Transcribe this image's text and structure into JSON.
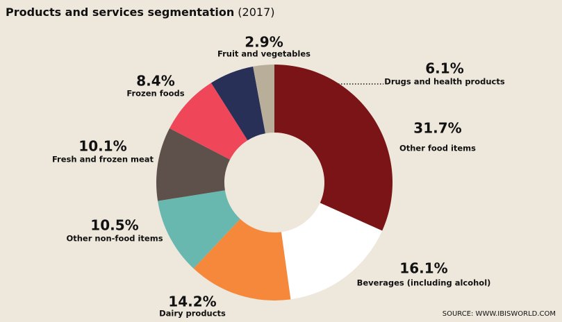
{
  "chart_data": {
    "type": "donut",
    "title": "Products and services segmentation",
    "subtitle": "(2017)",
    "categories": [
      "Other food items",
      "Beverages (including alcohol)",
      "Dairy products",
      "Other non-food items",
      "Fresh and frozen meat",
      "Frozen foods",
      "Drugs and health products",
      "Fruit and vegetables"
    ],
    "values": [
      31.7,
      16.1,
      14.2,
      10.5,
      10.1,
      8.4,
      6.1,
      2.9
    ],
    "value_labels": [
      "31.7%",
      "16.1%",
      "14.2%",
      "10.5%",
      "10.1%",
      "8.4%",
      "6.1%",
      "2.9%"
    ],
    "colors": [
      "#7a1416",
      "#ffffff",
      "#f5883a",
      "#68b8b0",
      "#5e514c",
      "#ef4759",
      "#283058",
      "#b8ae9a"
    ],
    "source": "SOURCE: WWW.IBISWORLD.COM"
  }
}
